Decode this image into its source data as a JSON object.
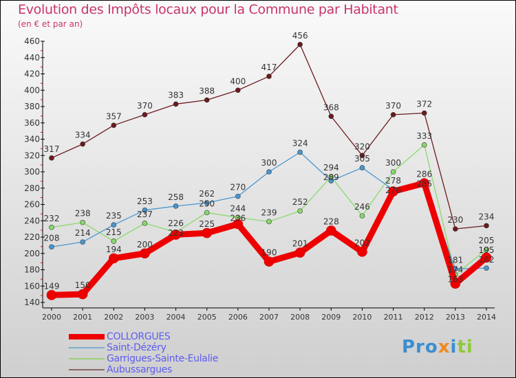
{
  "chart_data": {
    "type": "line",
    "title": "Evolution des Impôts locaux pour la Commune par Habitant",
    "subtitle": "(en € et par an)",
    "xlabel": "",
    "ylabel": "",
    "x": [
      "2000",
      "2001",
      "2002",
      "2003",
      "2004",
      "2005",
      "2006",
      "2007",
      "2008",
      "2009",
      "2010",
      "2011",
      "2012",
      "2013",
      "2014"
    ],
    "ylim": [
      140,
      460
    ],
    "yticks": [
      "140",
      "160",
      "180",
      "200",
      "220",
      "240",
      "260",
      "280",
      "300",
      "320",
      "340",
      "360",
      "380",
      "400",
      "420",
      "440",
      "460"
    ],
    "legend_position": "bottom-left",
    "series": [
      {
        "name": "Aubussargues",
        "color": "#6b1a1e",
        "values": [
          317,
          334,
          357,
          370,
          383,
          388,
          400,
          417,
          456,
          368,
          320,
          370,
          372,
          230,
          234
        ]
      },
      {
        "name": "Garrigues-Sainte-Eulalie",
        "color": "#88d96a",
        "values": [
          232,
          238,
          215,
          237,
          226,
          250,
          244,
          239,
          252,
          294,
          246,
          300,
          333,
          174,
          205
        ]
      },
      {
        "name": "Saint-Dézéry",
        "color": "#4a96d0",
        "values": [
          208,
          214,
          235,
          253,
          258,
          262,
          270,
          300,
          324,
          289,
          305,
          278,
          285,
          181,
          182
        ]
      },
      {
        "name": "COLLORGUES",
        "color": "#ee0000",
        "values": [
          149,
          150,
          194,
          200,
          223,
          225,
          236,
          190,
          201,
          228,
          202,
          276,
          286,
          163,
          195
        ]
      }
    ]
  },
  "legend": [
    "COLLORGUES",
    "Saint-Dézéry",
    "Garrigues-Sainte-Eulalie",
    "Aubussargues"
  ],
  "logo": "Proxiti"
}
